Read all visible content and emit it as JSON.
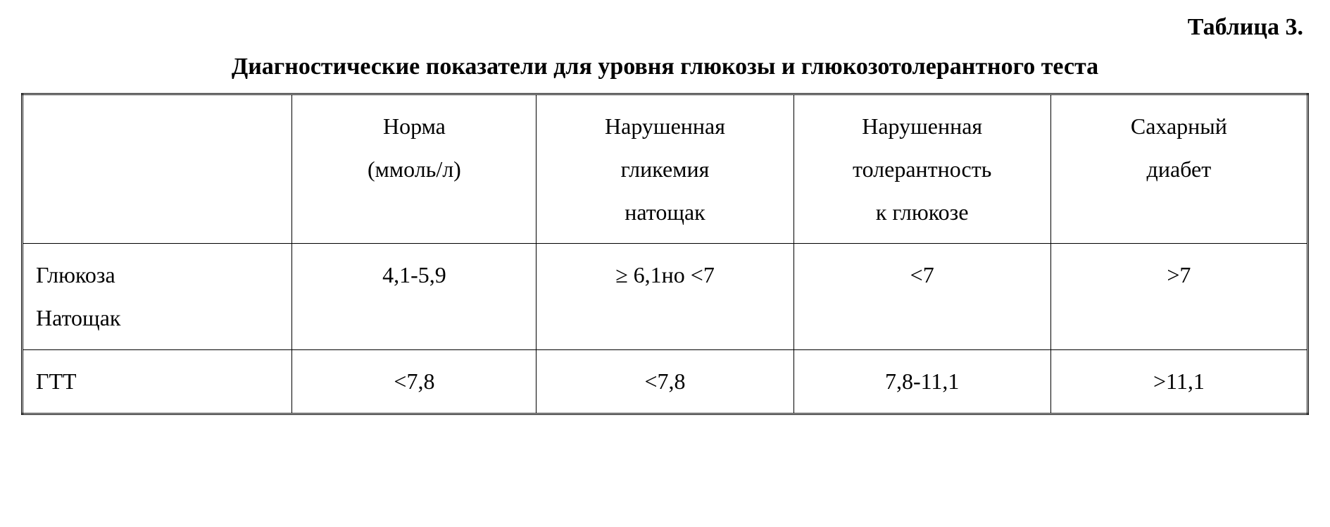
{
  "header": {
    "table_number": "Таблица 3.",
    "caption": "Диагностические показатели для уровня глюкозы и глюкозотолерантного теста"
  },
  "table": {
    "type": "table",
    "background_color": "#ffffff",
    "border_color": "#000000",
    "font_family": "Times New Roman",
    "header_fontsize": 32,
    "cell_fontsize": 32,
    "columns": [
      {
        "label_line1": "",
        "label_line2": "",
        "label_line3": "",
        "align": "left",
        "width_pct": 21
      },
      {
        "label_line1": "Норма",
        "label_line2": "(ммоль/л)",
        "label_line3": "",
        "align": "center",
        "width_pct": 19
      },
      {
        "label_line1": "Нарушенная",
        "label_line2": "гликемия",
        "label_line3": "натощак",
        "align": "center",
        "width_pct": 20
      },
      {
        "label_line1": "Нарушенная",
        "label_line2": "толерантность",
        "label_line3": "к глюкозе",
        "align": "center",
        "width_pct": 20
      },
      {
        "label_line1": "Сахарный",
        "label_line2": "диабет",
        "label_line3": "",
        "align": "center",
        "width_pct": 20
      }
    ],
    "rows": [
      {
        "label_line1": "Глюкоза",
        "label_line2": "Натощак",
        "values": [
          "4,1-5,9",
          "≥ 6,1но <7",
          "<7",
          ">7"
        ]
      },
      {
        "label_line1": "ГТТ",
        "label_line2": "",
        "values": [
          "<7,8",
          "<7,8",
          "7,8-11,1",
          ">11,1"
        ]
      }
    ]
  }
}
